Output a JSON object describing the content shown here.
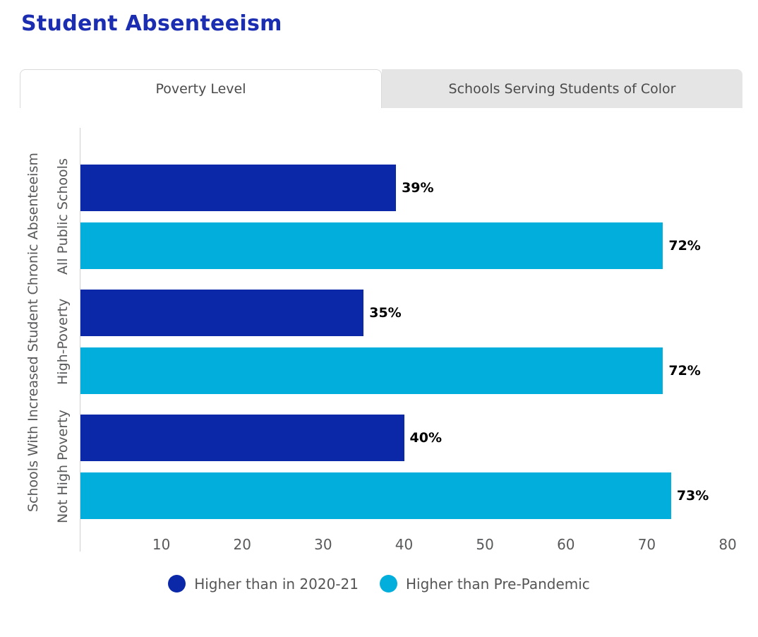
{
  "page": {
    "title": "Student Absenteeism"
  },
  "tabs": [
    {
      "label": "Poverty Level",
      "active": true
    },
    {
      "label": "Schools Serving Students of Color",
      "active": false
    }
  ],
  "chart_data": {
    "type": "bar",
    "orientation": "horizontal",
    "y_axis_title": "Schools With Increased Student Chronic Absenteeism",
    "categories": [
      "All Public Schools",
      "High-Poverty",
      "Not High Poverty"
    ],
    "series": [
      {
        "name": "Higher than in 2020-21",
        "color": "#0b28a8",
        "values": [
          39,
          35,
          40
        ],
        "labels": [
          "39%",
          "35%",
          "40%"
        ]
      },
      {
        "name": "Higher than Pre-Pandemic",
        "color": "#02aedc",
        "values": [
          72,
          72,
          73
        ],
        "labels": [
          "72%",
          "72%",
          "73%"
        ]
      }
    ],
    "x_ticks": [
      10,
      20,
      30,
      40,
      50,
      60,
      70,
      80
    ],
    "xlim": [
      0,
      82
    ],
    "grid": false,
    "legend_position": "bottom"
  },
  "colors": {
    "title": "#1b2db0",
    "series_2020_21": "#0b28a8",
    "series_pre_pandemic": "#02aedc",
    "axis_text": "#58595b",
    "tab_inactive_bg": "#e5e5e5"
  }
}
